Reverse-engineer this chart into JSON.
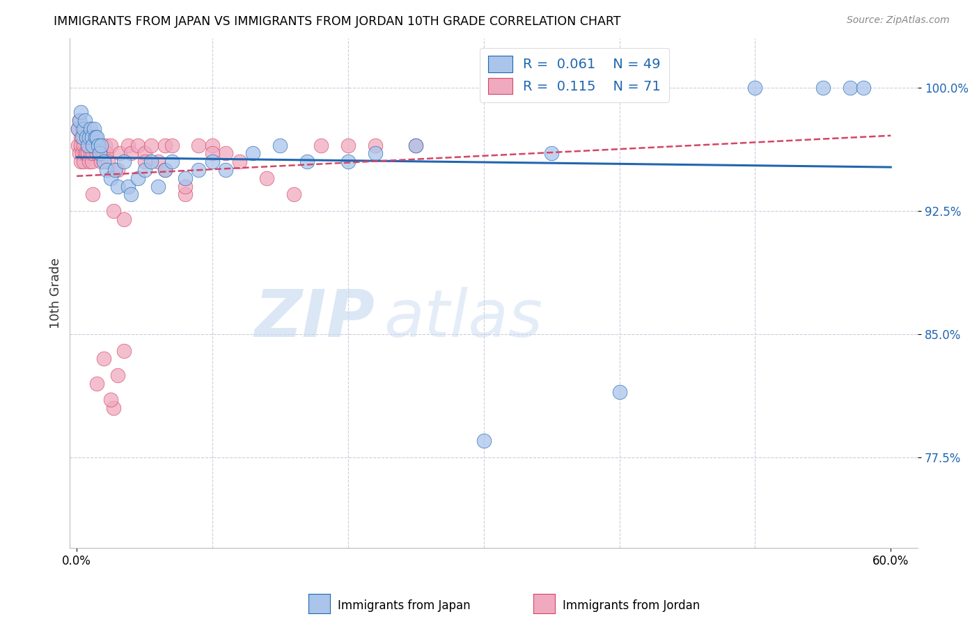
{
  "title": "IMMIGRANTS FROM JAPAN VS IMMIGRANTS FROM JORDAN 10TH GRADE CORRELATION CHART",
  "source": "Source: ZipAtlas.com",
  "ylabel": "10th Grade",
  "ylim": [
    72.0,
    103.0
  ],
  "xlim": [
    -0.005,
    0.62
  ],
  "legend_R_japan": "0.061",
  "legend_N_japan": "49",
  "legend_R_jordan": "0.115",
  "legend_N_jordan": "71",
  "japan_color": "#aac4ea",
  "jordan_color": "#f0aac0",
  "trendline_japan_color": "#2066b0",
  "trendline_jordan_color": "#d44466",
  "watermark_zip": "ZIP",
  "watermark_atlas": "atlas",
  "japan_scatter_x": [
    0.001,
    0.002,
    0.003,
    0.004,
    0.005,
    0.006,
    0.007,
    0.008,
    0.009,
    0.01,
    0.011,
    0.012,
    0.013,
    0.014,
    0.015,
    0.016,
    0.017,
    0.018,
    0.02,
    0.022,
    0.025,
    0.028,
    0.03,
    0.035,
    0.038,
    0.04,
    0.045,
    0.05,
    0.055,
    0.06,
    0.065,
    0.07,
    0.08,
    0.09,
    0.1,
    0.11,
    0.13,
    0.15,
    0.17,
    0.2,
    0.22,
    0.25,
    0.3,
    0.35,
    0.4,
    0.5,
    0.55,
    0.57,
    0.58
  ],
  "japan_scatter_y": [
    97.5,
    98.0,
    98.5,
    97.0,
    97.5,
    98.0,
    97.0,
    96.5,
    97.0,
    97.5,
    97.0,
    96.5,
    97.5,
    97.0,
    97.0,
    96.5,
    96.0,
    96.5,
    95.5,
    95.0,
    94.5,
    95.0,
    94.0,
    95.5,
    94.0,
    93.5,
    94.5,
    95.0,
    95.5,
    94.0,
    95.0,
    95.5,
    94.5,
    95.0,
    95.5,
    95.0,
    96.0,
    96.5,
    95.5,
    95.5,
    96.0,
    96.5,
    78.5,
    96.0,
    81.5,
    100.0,
    100.0,
    100.0,
    100.0
  ],
  "jordan_scatter_x": [
    0.001,
    0.001,
    0.002,
    0.002,
    0.003,
    0.003,
    0.003,
    0.004,
    0.004,
    0.005,
    0.005,
    0.005,
    0.006,
    0.006,
    0.007,
    0.007,
    0.008,
    0.008,
    0.009,
    0.009,
    0.01,
    0.01,
    0.011,
    0.012,
    0.012,
    0.013,
    0.014,
    0.015,
    0.016,
    0.017,
    0.018,
    0.019,
    0.02,
    0.021,
    0.022,
    0.023,
    0.025,
    0.027,
    0.03,
    0.032,
    0.035,
    0.038,
    0.04,
    0.045,
    0.05,
    0.055,
    0.06,
    0.065,
    0.07,
    0.08,
    0.09,
    0.1,
    0.11,
    0.12,
    0.14,
    0.16,
    0.18,
    0.2,
    0.22,
    0.25,
    0.027,
    0.03,
    0.035,
    0.012,
    0.015,
    0.02,
    0.025,
    0.05,
    0.065,
    0.08,
    0.1
  ],
  "jordan_scatter_y": [
    97.5,
    96.5,
    98.0,
    96.0,
    97.0,
    96.5,
    95.5,
    97.5,
    96.0,
    97.0,
    96.5,
    95.5,
    97.5,
    96.0,
    97.0,
    96.0,
    97.0,
    96.0,
    96.5,
    95.5,
    97.0,
    96.0,
    95.5,
    96.5,
    96.0,
    96.5,
    96.5,
    96.0,
    96.5,
    96.0,
    95.5,
    96.0,
    96.0,
    96.5,
    96.0,
    95.5,
    96.5,
    92.5,
    95.0,
    96.0,
    92.0,
    96.5,
    96.0,
    96.5,
    96.0,
    96.5,
    95.5,
    96.5,
    96.5,
    93.5,
    96.5,
    96.5,
    96.0,
    95.5,
    94.5,
    93.5,
    96.5,
    96.5,
    96.5,
    96.5,
    80.5,
    82.5,
    84.0,
    93.5,
    82.0,
    83.5,
    81.0,
    95.5,
    95.0,
    94.0,
    96.0
  ]
}
